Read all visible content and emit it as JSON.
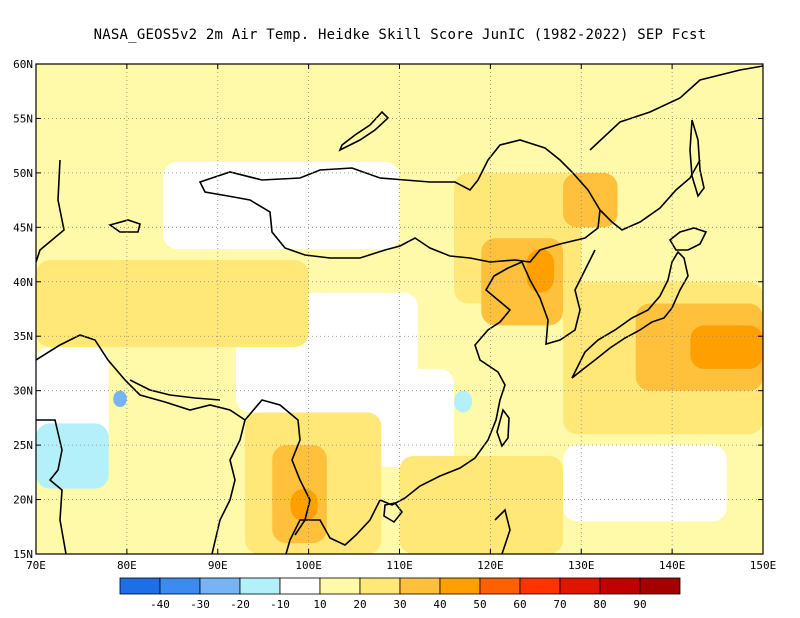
{
  "title": "NASA_GEOS5v2  2m Air Temp. Heidke Skill Score JunIC (1982-2022) SEP Fcst",
  "map": {
    "lon_range": [
      70,
      150
    ],
    "lat_range": [
      15,
      60
    ],
    "lon_ticks": [
      {
        "value": 70,
        "label": "70E"
      },
      {
        "value": 80,
        "label": "80E"
      },
      {
        "value": 90,
        "label": "90E"
      },
      {
        "value": 100,
        "label": "100E"
      },
      {
        "value": 110,
        "label": "110E"
      },
      {
        "value": 120,
        "label": "120E"
      },
      {
        "value": 130,
        "label": "130E"
      },
      {
        "value": 140,
        "label": "140E"
      },
      {
        "value": 150,
        "label": "150E"
      }
    ],
    "lat_ticks": [
      {
        "value": 15,
        "label": "15N"
      },
      {
        "value": 20,
        "label": "20N"
      },
      {
        "value": 25,
        "label": "25N"
      },
      {
        "value": 30,
        "label": "30N"
      },
      {
        "value": 35,
        "label": "35N"
      },
      {
        "value": 40,
        "label": "40N"
      },
      {
        "value": 45,
        "label": "45N"
      },
      {
        "value": 50,
        "label": "50N"
      },
      {
        "value": 55,
        "label": "55N"
      },
      {
        "value": 60,
        "label": "60N"
      }
    ],
    "grid": "dotted"
  },
  "colorbar": {
    "colors": [
      "#1e6ee6",
      "#3c8cf0",
      "#78b4f5",
      "#b4f0fa",
      "#ffffff",
      "#fffaaa",
      "#ffe878",
      "#ffc03c",
      "#ffa000",
      "#ff6000",
      "#ff3200",
      "#e11400",
      "#c00000",
      "#a50000"
    ],
    "labels": [
      "-40",
      "-30",
      "-20",
      "-10",
      "10",
      "20",
      "30",
      "40",
      "50",
      "60",
      "70",
      "80",
      "90"
    ]
  },
  "regions": [
    {
      "color": "#fffaaa",
      "lon": [
        70,
        150
      ],
      "lat": [
        15,
        60
      ]
    },
    {
      "color": "#ffffff",
      "lon": [
        84,
        110
      ],
      "lat": [
        43,
        51
      ]
    },
    {
      "color": "#ffffff",
      "lon": [
        92,
        112
      ],
      "lat": [
        28,
        39
      ]
    },
    {
      "color": "#ffffff",
      "lon": [
        104,
        116
      ],
      "lat": [
        23,
        32
      ]
    },
    {
      "color": "#ffffff",
      "lon": [
        70,
        78
      ],
      "lat": [
        25,
        34
      ]
    },
    {
      "color": "#ffffff",
      "lon": [
        128,
        146
      ],
      "lat": [
        18,
        25
      ]
    },
    {
      "color": "#b4f0fa",
      "lon": [
        70,
        78
      ],
      "lat": [
        21,
        27
      ]
    },
    {
      "color": "#b4f0fa",
      "lon": [
        116,
        118
      ],
      "lat": [
        28,
        30
      ]
    },
    {
      "color": "#78b4f5",
      "lon": [
        78.5,
        80
      ],
      "lat": [
        28.5,
        30
      ]
    },
    {
      "color": "#ffe878",
      "lon": [
        70,
        100
      ],
      "lat": [
        34,
        42
      ]
    },
    {
      "color": "#ffe878",
      "lon": [
        116,
        130
      ],
      "lat": [
        38,
        50
      ]
    },
    {
      "color": "#ffe878",
      "lon": [
        128,
        150
      ],
      "lat": [
        26,
        40
      ]
    },
    {
      "color": "#ffe878",
      "lon": [
        93,
        108
      ],
      "lat": [
        15,
        28
      ]
    },
    {
      "color": "#ffe878",
      "lon": [
        110,
        128
      ],
      "lat": [
        15,
        24
      ]
    },
    {
      "color": "#ffc03c",
      "lon": [
        96,
        102
      ],
      "lat": [
        16,
        25
      ]
    },
    {
      "color": "#ffc03c",
      "lon": [
        119,
        128
      ],
      "lat": [
        36,
        44
      ]
    },
    {
      "color": "#ffc03c",
      "lon": [
        136,
        150
      ],
      "lat": [
        30,
        38
      ]
    },
    {
      "color": "#ffc03c",
      "lon": [
        128,
        134
      ],
      "lat": [
        45,
        50
      ]
    },
    {
      "color": "#ffa000",
      "lon": [
        124,
        127
      ],
      "lat": [
        39,
        43
      ]
    },
    {
      "color": "#ffa000",
      "lon": [
        98,
        101
      ],
      "lat": [
        18,
        21
      ]
    },
    {
      "color": "#ffa000",
      "lon": [
        142,
        150
      ],
      "lat": [
        32,
        36
      ]
    }
  ]
}
